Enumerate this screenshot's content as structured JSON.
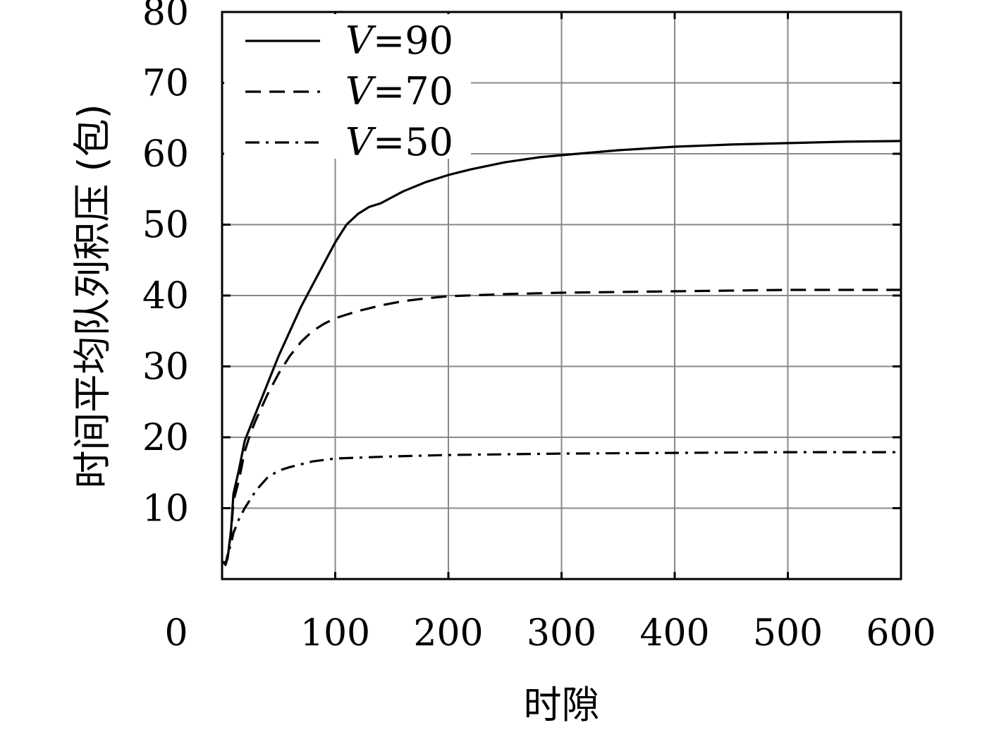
{
  "chart_data": {
    "type": "line",
    "xlabel": "时隙",
    "ylabel": "时间平均队列积压 (包)",
    "xlim": [
      0,
      600
    ],
    "ylim": [
      0,
      80
    ],
    "x_ticks": [
      "0",
      "100",
      "200",
      "300",
      "400",
      "500",
      "600"
    ],
    "y_ticks": [
      "10",
      "20",
      "30",
      "40",
      "50",
      "60",
      "70",
      "80"
    ],
    "grid": true,
    "legend_position": "top-left",
    "series": [
      {
        "name": "V=90",
        "legend_var": "V",
        "legend_rest": "=90",
        "style": "solid",
        "x": [
          1,
          3,
          5,
          8,
          10,
          15,
          20,
          25,
          30,
          35,
          40,
          50,
          60,
          70,
          80,
          90,
          100,
          110,
          120,
          130,
          140,
          160,
          180,
          200,
          220,
          250,
          280,
          300,
          350,
          400,
          450,
          500,
          550,
          600
        ],
        "y": [
          2.5,
          2.0,
          3.0,
          7.0,
          12.0,
          15.5,
          19.5,
          21.5,
          23.5,
          25.5,
          27.5,
          31.5,
          35.0,
          38.5,
          41.5,
          44.5,
          47.5,
          50.0,
          51.5,
          52.5,
          53.0,
          54.7,
          56.0,
          57.0,
          57.8,
          58.8,
          59.5,
          59.8,
          60.5,
          61.0,
          61.3,
          61.5,
          61.7,
          61.8
        ]
      },
      {
        "name": "V=70",
        "legend_var": "V",
        "legend_rest": "=70",
        "style": "dashed",
        "x": [
          1,
          3,
          5,
          8,
          10,
          15,
          20,
          25,
          30,
          40,
          50,
          60,
          70,
          80,
          90,
          100,
          110,
          120,
          140,
          160,
          180,
          200,
          250,
          300,
          400,
          500,
          600
        ],
        "y": [
          2.5,
          2.0,
          3.5,
          6.5,
          11.0,
          14.0,
          18.0,
          20.5,
          22.5,
          26.0,
          29.0,
          31.5,
          33.5,
          35.0,
          36.0,
          36.8,
          37.3,
          37.8,
          38.6,
          39.2,
          39.6,
          39.9,
          40.2,
          40.4,
          40.6,
          40.8,
          40.8
        ]
      },
      {
        "name": "V=50",
        "legend_var": "V",
        "legend_rest": "=50",
        "style": "dashdot",
        "x": [
          1,
          3,
          5,
          8,
          10,
          15,
          20,
          30,
          40,
          50,
          60,
          80,
          100,
          150,
          200,
          300,
          400,
          500,
          600
        ],
        "y": [
          2.5,
          2.0,
          3.5,
          5.0,
          6.5,
          8.5,
          10.0,
          12.5,
          14.3,
          15.3,
          15.8,
          16.6,
          17.0,
          17.3,
          17.5,
          17.7,
          17.8,
          17.9,
          17.9
        ]
      }
    ]
  }
}
